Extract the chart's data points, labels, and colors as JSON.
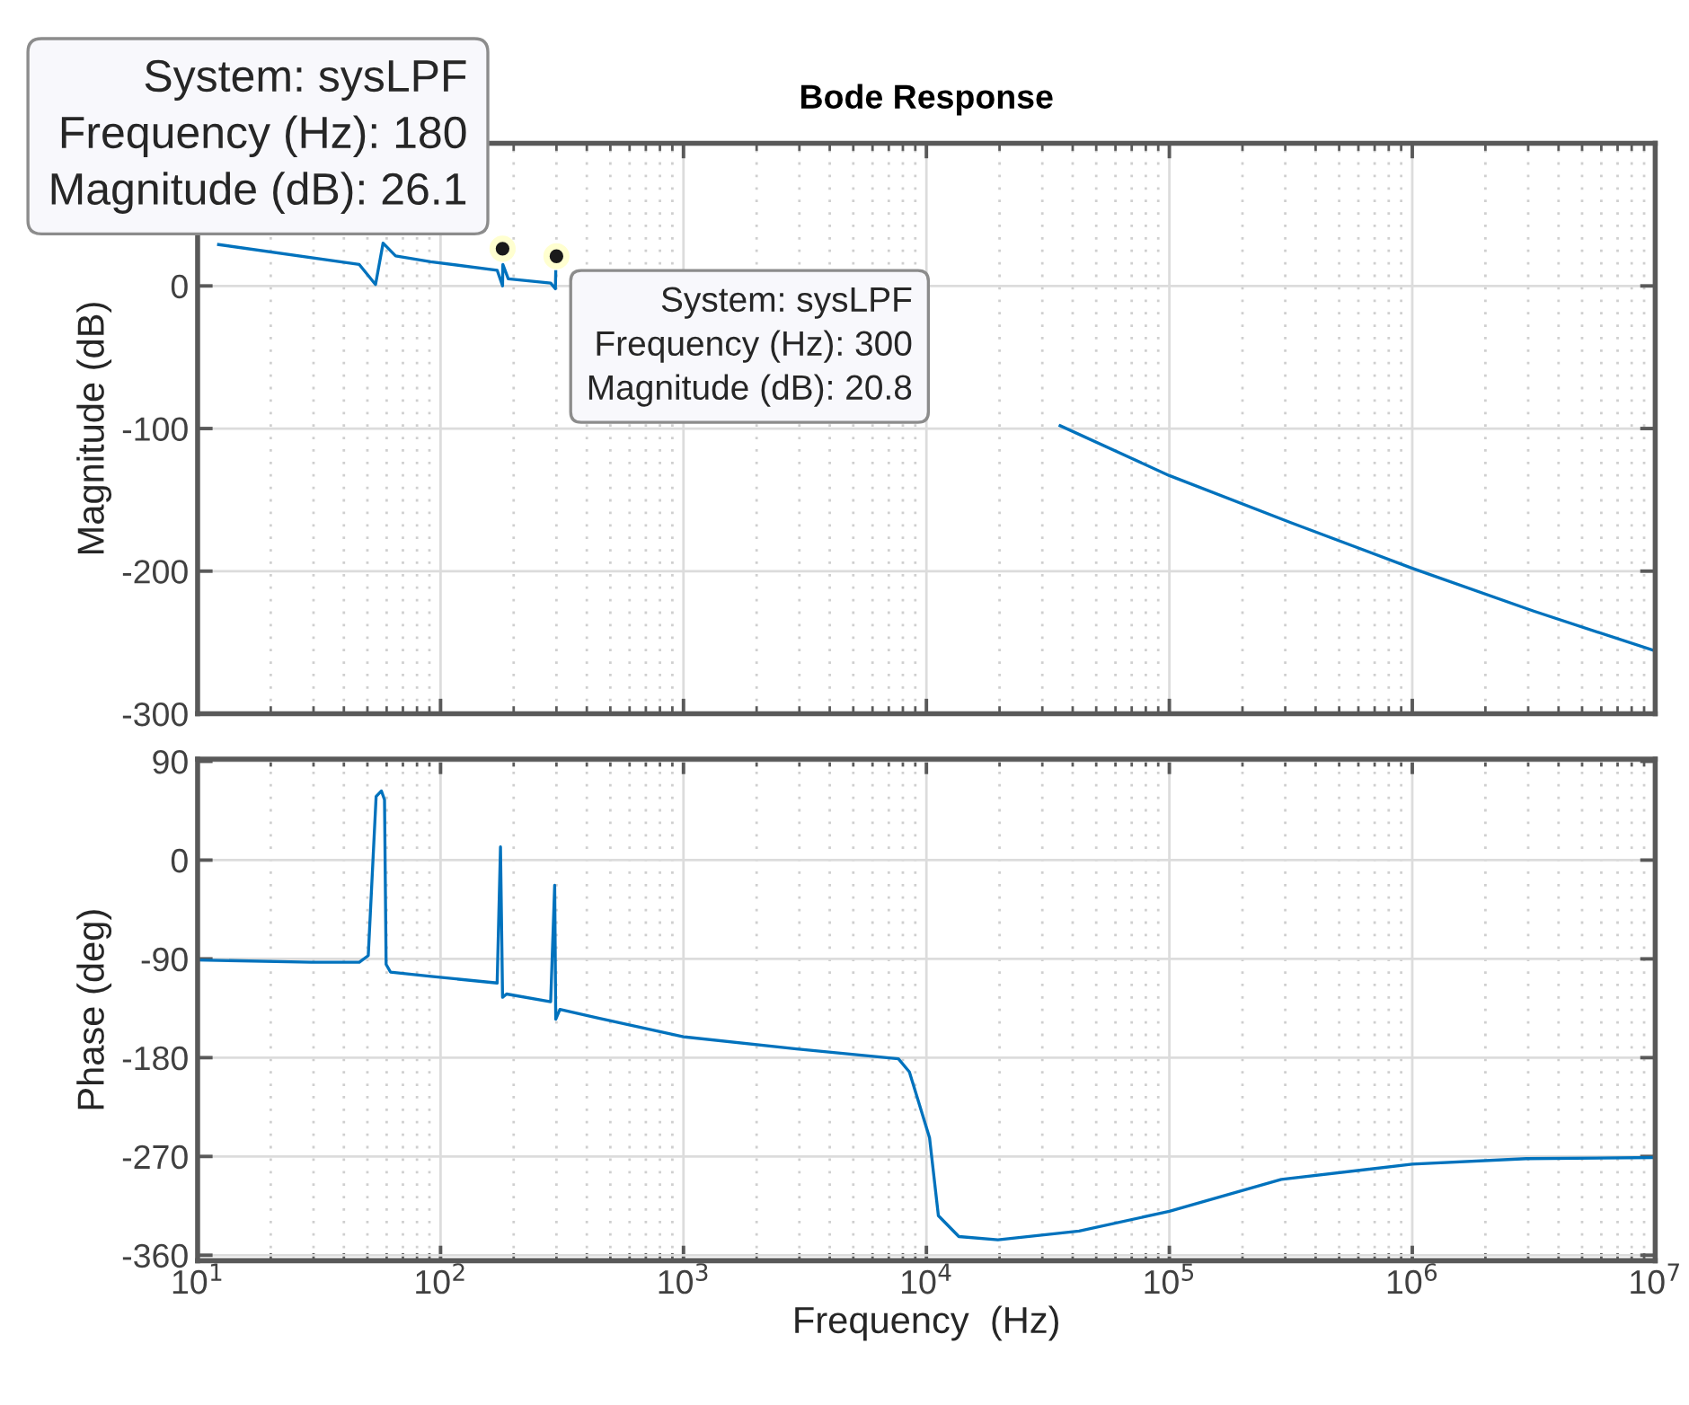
{
  "chart_data": [
    {
      "type": "line",
      "title": "Bode Response",
      "ylabel": "Magnitude (dB)",
      "log": "x",
      "grid": true,
      "tick_labels": "y",
      "marker": "none",
      "line_style": "solid",
      "xlim": [
        10,
        10000000
      ],
      "ylim": [
        -300,
        100
      ],
      "xticks": [
        {
          "value": 10,
          "label": null
        },
        {
          "value": 100,
          "label": null
        },
        {
          "value": 1000,
          "label": null
        },
        {
          "value": 10000,
          "label": null
        },
        {
          "value": 100000,
          "label": null
        },
        {
          "value": 1000000,
          "label": null
        },
        {
          "value": 10000000,
          "label": null
        }
      ],
      "yticks": [
        -300,
        -200,
        -100,
        0
      ],
      "series": [
        {
          "color": "#0072bd",
          "x": [
            12.2,
            46.3,
            54,
            58,
            65.3,
            91,
            171,
            180,
            180.5,
            190,
            284,
            297,
            298,
            300,
            35500,
            100000,
            316000,
            1000000,
            3160000,
            10000000
          ],
          "values": [
            29,
            15,
            1,
            30,
            21,
            17,
            11,
            0,
            15,
            5,
            2,
            -2,
            10,
            null,
            -98,
            -133,
            -166,
            -198,
            -228,
            -256
          ]
        }
      ],
      "annotations": [
        {
          "text": "System: sysLPF\nFrequency (Hz): 180\nMagnitude (dB): 26.1",
          "x": 180,
          "y": 26.1
        },
        {
          "text": "System: sysLPF\nFrequency (Hz): 300\nMagnitude (dB): 20.8",
          "x": 300,
          "y": 20.8
        }
      ]
    },
    {
      "type": "line",
      "xlabel": "Frequency  (Hz)",
      "ylabel": "Phase (deg)",
      "log": "x",
      "grid": true,
      "marker": "none",
      "line_style": "solid",
      "xlim": [
        10,
        10000000
      ],
      "ylim": [
        -365,
        92
      ],
      "xticks": [
        {
          "value": 10,
          "label": "10$^{1}$"
        },
        {
          "value": 100,
          "label": "10$^{2}$"
        },
        {
          "value": 1000,
          "label": "10$^{3}$"
        },
        {
          "value": 10000,
          "label": "10$^{4}$"
        },
        {
          "value": 100000,
          "label": "10$^{5}$"
        },
        {
          "value": 1000000,
          "label": "10$^{6}$"
        },
        {
          "value": 10000000,
          "label": "10$^{7}$"
        }
      ],
      "yticks": [
        -360,
        -270,
        -180,
        -90,
        0,
        90
      ],
      "series": [
        {
          "color": "#0072bd",
          "x": [
            10,
            29.4,
            46.3,
            50.4,
            54.3,
            57.1,
            58.8,
            59.7,
            62.2,
            91.4,
            171,
            176.5,
            180,
            187,
            284,
            295,
            298,
            310,
            447,
            1000,
            2920,
            7670,
            8510,
            10300,
            11200,
            13600,
            19700,
            42500,
            100000,
            289000,
            1000000,
            2950000,
            10000000
          ],
          "values": [
            -91,
            -93,
            -93,
            -87,
            58,
            63,
            55,
            -95,
            -102,
            -106,
            -112,
            12,
            -125,
            -122,
            -129,
            -23,
            -145,
            -136,
            -144,
            -161,
            -172,
            -181,
            -193,
            -253,
            -324,
            -343,
            -346,
            -338,
            -320,
            -291,
            -277,
            -272,
            -271
          ]
        }
      ]
    }
  ]
}
